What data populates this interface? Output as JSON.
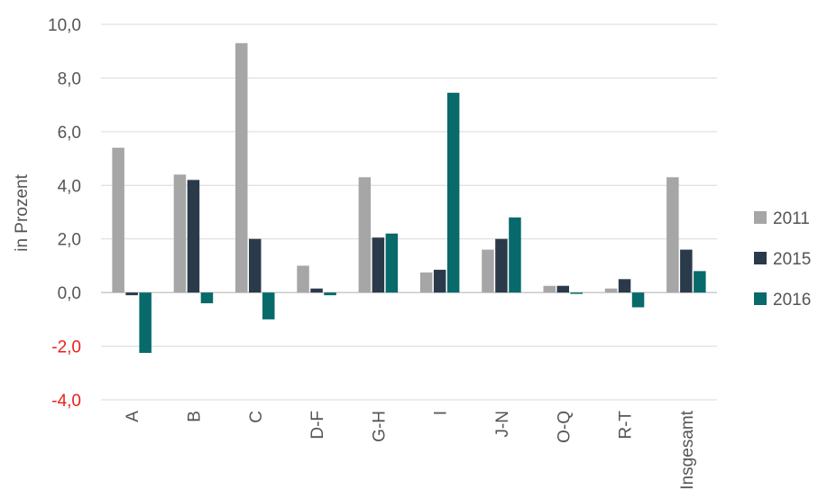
{
  "chart_data": {
    "type": "bar",
    "categories": [
      "A",
      "B",
      "C",
      "D-F",
      "G-H",
      "I",
      "J-N",
      "O-Q",
      "R-T",
      "Insgesamt"
    ],
    "series": [
      {
        "name": "2011",
        "color": "#a6a6a6",
        "values": [
          5.4,
          4.4,
          9.3,
          1.0,
          4.3,
          0.75,
          1.6,
          0.25,
          0.15,
          4.3
        ]
      },
      {
        "name": "2015",
        "color": "#2b3a4a",
        "values": [
          -0.1,
          4.2,
          2.0,
          0.15,
          2.05,
          0.85,
          2.0,
          0.25,
          0.5,
          1.6
        ]
      },
      {
        "name": "2016",
        "color": "#086a6a",
        "values": [
          -2.25,
          -0.4,
          -1.0,
          -0.1,
          2.2,
          7.45,
          2.8,
          -0.05,
          -0.55,
          0.8
        ]
      }
    ],
    "ylabel": "in Prozent",
    "xlabel": "",
    "ylim": [
      -4,
      10
    ],
    "yticks": [
      "-4,0",
      "-2,0",
      "0,0",
      "2,0",
      "4,0",
      "6,0",
      "8,0",
      "10,0"
    ],
    "ytick_values": [
      -4,
      -2,
      0,
      2,
      4,
      6,
      8,
      10
    ],
    "negative_tick_color": "#e8221b",
    "grid": true,
    "legend_position": "right"
  }
}
